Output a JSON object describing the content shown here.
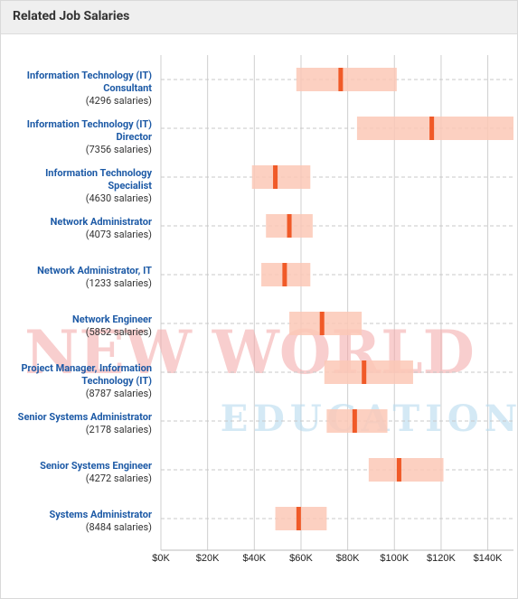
{
  "header": {
    "title": "Related Job Salaries"
  },
  "chart_data": {
    "type": "range",
    "categories": [
      "Information Technology (IT) Consultant",
      "Information Technology (IT) Director",
      "Information Technology Specialist",
      "Network Administrator",
      "Network Administrator, IT",
      "Network Engineer",
      "Project Manager, Information Technology (IT)",
      "Senior Systems Administrator",
      "Senior Systems Engineer",
      "Systems Administrator"
    ],
    "count_labels": [
      "(4296 salaries)",
      "(7356 salaries)",
      "(4630 salaries)",
      "(4073 salaries)",
      "(1233 salaries)",
      "(5852 salaries)",
      "(8787 salaries)",
      "(2178 salaries)",
      "(4272 salaries)",
      "(8484 salaries)"
    ],
    "low": [
      58,
      84,
      39,
      45,
      43,
      55,
      70,
      71,
      89,
      49
    ],
    "median": [
      77,
      116,
      49,
      55,
      53,
      69,
      87,
      83,
      102,
      59
    ],
    "high": [
      101,
      151,
      64,
      65,
      64,
      86,
      108,
      97,
      121,
      71
    ],
    "range_color": "#fcc8b6",
    "median_color": "#f05a28",
    "xlim": [
      0,
      151
    ],
    "xticks": [
      {
        "value": 0,
        "label": "$0K"
      },
      {
        "value": 20,
        "label": "$20K"
      },
      {
        "value": 40,
        "label": "$40K"
      },
      {
        "value": 60,
        "label": "$60K"
      },
      {
        "value": 80,
        "label": "$80K"
      },
      {
        "value": 100,
        "label": "$100K"
      },
      {
        "value": 120,
        "label": "$120K"
      },
      {
        "value": 140,
        "label": "$140K"
      }
    ],
    "grid": true
  },
  "watermark": {
    "line1": "NEW WORLD",
    "line2": "EDUCATION"
  }
}
